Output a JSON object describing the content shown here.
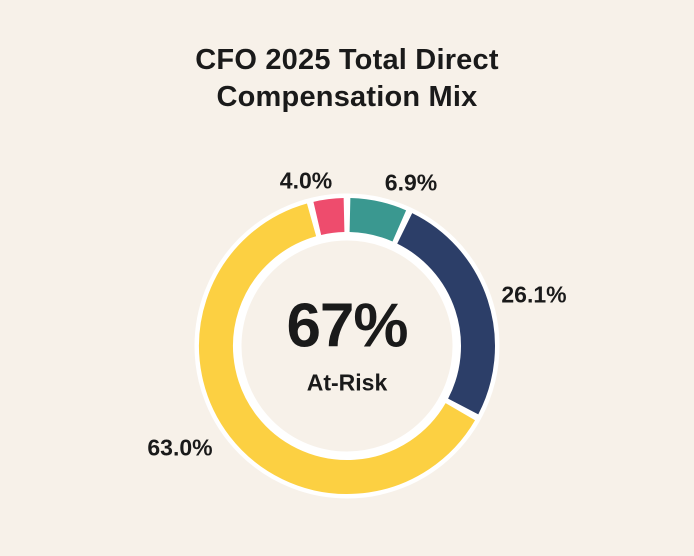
{
  "title": {
    "line1": "CFO 2025 Total Direct",
    "line2": "Compensation Mix"
  },
  "chart_data": {
    "type": "pie",
    "subtype": "donut",
    "title": "CFO 2025 Total Direct Compensation Mix",
    "segments": [
      {
        "name": "pink",
        "value": 4.0,
        "label": "4.0%",
        "color": "#ee4c6d"
      },
      {
        "name": "teal",
        "value": 6.9,
        "label": "6.9%",
        "color": "#3a9890"
      },
      {
        "name": "navy",
        "value": 26.1,
        "label": "26.1%",
        "color": "#2c3e68"
      },
      {
        "name": "yellow",
        "value": 63.0,
        "label": "63.0%",
        "color": "#fcd042"
      }
    ],
    "center_annotation": {
      "value": "67%",
      "label": "At-Risk"
    },
    "start_angle_deg": -14.4,
    "direction": "clockwise",
    "legend": "none",
    "grid": "off",
    "background_color": "#f7f1e9",
    "ring_outline_color": "#ffffff",
    "label_color": "#1a1a1a"
  }
}
